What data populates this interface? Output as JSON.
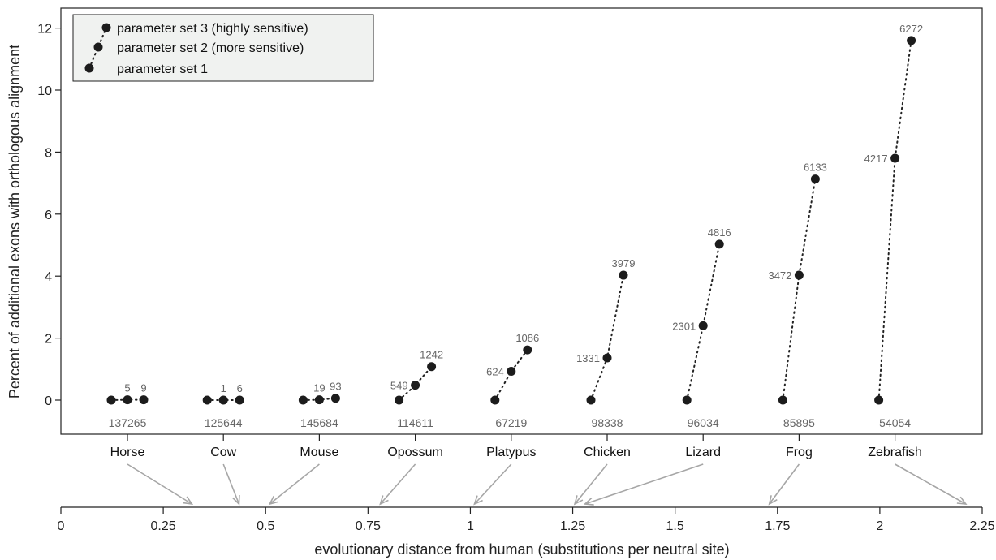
{
  "chart_data": {
    "type": "scatter",
    "ylabel": "Percent of additional exons with orthologous alignment",
    "xlabel": "evolutionary distance from human (substitutions per neutral site)",
    "ylim": [
      -0.8,
      12.5
    ],
    "yticks": [
      0,
      2,
      4,
      6,
      8,
      10,
      12
    ],
    "distance_axis": {
      "range": [
        0,
        2.25
      ],
      "ticks": [
        0,
        0.25,
        0.5,
        0.75,
        1,
        1.25,
        1.5,
        1.75,
        2,
        2.25
      ],
      "tick_labels": [
        "0",
        "0.25",
        "0.5",
        "0.75",
        "1",
        "1.25",
        "1.5",
        "1.75",
        "2",
        "2.25"
      ]
    },
    "legend": {
      "position": "top-left",
      "entries": [
        "parameter set 3 (highly sensitive)",
        "parameter set 2 (more sensitive)",
        "parameter set 1"
      ]
    },
    "species": [
      {
        "name": "Horse",
        "baseline": "137265",
        "values": [
          0,
          0.01,
          0.01
        ],
        "labels": [
          "",
          "5",
          "9"
        ],
        "distance": 0.32
      },
      {
        "name": "Cow",
        "baseline": "125644",
        "values": [
          0,
          0.0,
          0.0
        ],
        "labels": [
          "",
          "1",
          "6"
        ],
        "distance": 0.435
      },
      {
        "name": "Mouse",
        "baseline": "145684",
        "values": [
          0,
          0.01,
          0.06
        ],
        "labels": [
          "",
          "19",
          "93"
        ],
        "distance": 0.51
      },
      {
        "name": "Opossum",
        "baseline": "114611",
        "values": [
          0,
          0.48,
          1.08
        ],
        "labels": [
          "",
          "549",
          "1242"
        ],
        "distance": 0.78
      },
      {
        "name": "Platypus",
        "baseline": "67219",
        "values": [
          0,
          0.93,
          1.62
        ],
        "labels": [
          "",
          "624",
          "1086"
        ],
        "distance": 1.01
      },
      {
        "name": "Chicken",
        "baseline": "98338",
        "values": [
          0,
          1.36,
          4.03
        ],
        "labels": [
          "",
          "1331",
          "3979"
        ],
        "distance": 1.255
      },
      {
        "name": "Lizard",
        "baseline": "96034",
        "values": [
          0,
          2.4,
          5.03
        ],
        "labels": [
          "",
          "2301",
          "4816"
        ],
        "distance": 1.28
      },
      {
        "name": "Frog",
        "baseline": "85895",
        "values": [
          0,
          4.03,
          7.13
        ],
        "labels": [
          "",
          "3472",
          "6133"
        ],
        "distance": 1.73
      },
      {
        "name": "Zebrafish",
        "baseline": "54054",
        "values": [
          0,
          7.8,
          11.6
        ],
        "labels": [
          "",
          "4217",
          "6272"
        ],
        "distance": 2.21
      }
    ]
  }
}
